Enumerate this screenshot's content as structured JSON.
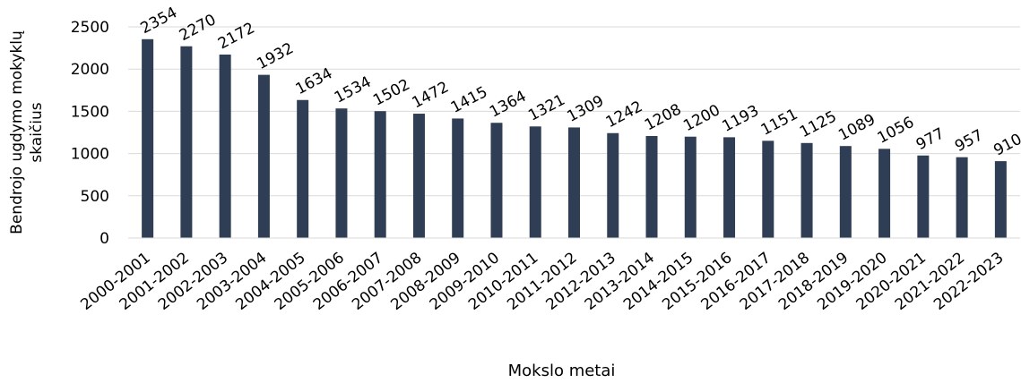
{
  "chart_data": {
    "type": "bar",
    "title": "",
    "xlabel": "Mokslo metai",
    "ylabel_lines": [
      "Bendrojo ugdymo mokyklų",
      "skaičius"
    ],
    "categories": [
      "2000-2001",
      "2001-2002",
      "2002-2003",
      "2003-2004",
      "2004-2005",
      "2005-2006",
      "2006-2007",
      "2007-2008",
      "2008-2009",
      "2009-2010",
      "2010-2011",
      "2011-2012",
      "2012-2013",
      "2013-2014",
      "2014-2015",
      "2015-2016",
      "2016-2017",
      "2017-2018",
      "2018-2019",
      "2019-2020",
      "2020-2021",
      "2021-2022",
      "2022-2023"
    ],
    "values": [
      2354,
      2270,
      2172,
      1932,
      1634,
      1534,
      1502,
      1472,
      1415,
      1364,
      1321,
      1309,
      1242,
      1208,
      1200,
      1193,
      1151,
      1125,
      1089,
      1056,
      977,
      957,
      910
    ],
    "ylim": [
      0,
      2500
    ],
    "yticks": [
      0,
      500,
      1000,
      1500,
      2000,
      2500
    ],
    "grid": true,
    "bar_color": "#2f3e54",
    "grid_color": "#d9d9d9"
  }
}
